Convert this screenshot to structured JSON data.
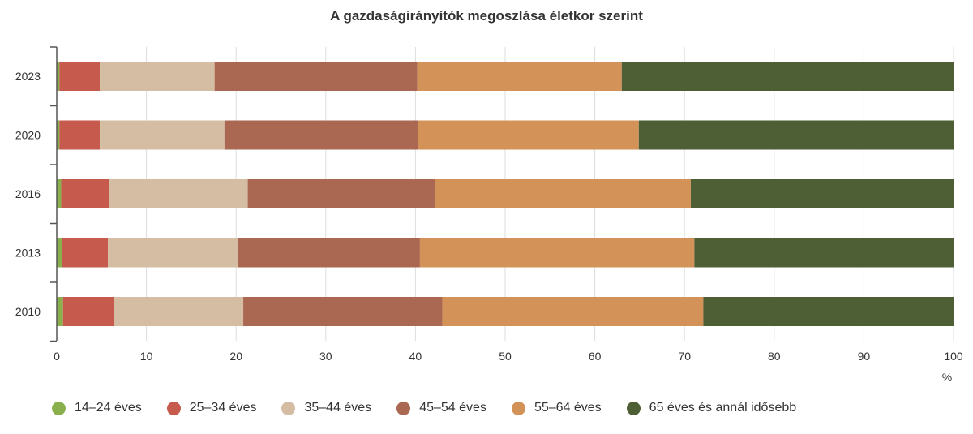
{
  "chart_data": {
    "type": "bar",
    "orientation": "horizontal",
    "stacked": true,
    "title": "A gazdaságirányítók megoszlása életkor szerint",
    "xlabel": "",
    "ylabel": "",
    "x_unit": "%",
    "xlim": [
      0,
      100
    ],
    "x_ticks": [
      0,
      10,
      20,
      30,
      40,
      50,
      60,
      70,
      80,
      90,
      100
    ],
    "grid": true,
    "legend_position": "bottom",
    "categories": [
      "2023",
      "2020",
      "2016",
      "2013",
      "2010"
    ],
    "series": [
      {
        "name": "14–24 éves",
        "color": "#8ab04e",
        "values": [
          0.3,
          0.3,
          0.5,
          0.6,
          0.7
        ]
      },
      {
        "name": "25–34 éves",
        "color": "#c65a4d",
        "values": [
          4.5,
          4.5,
          5.3,
          5.1,
          5.7
        ]
      },
      {
        "name": "35–44 éves",
        "color": "#d4bda3",
        "values": [
          12.8,
          13.9,
          15.5,
          14.5,
          14.4
        ]
      },
      {
        "name": "45–54 éves",
        "color": "#aa6752",
        "values": [
          22.6,
          21.6,
          20.9,
          20.3,
          22.2
        ]
      },
      {
        "name": "55–64 éves",
        "color": "#d39257",
        "values": [
          22.8,
          24.6,
          28.5,
          30.6,
          29.1
        ]
      },
      {
        "name": "65 éves és annál idősebb",
        "color": "#4e5e35",
        "values": [
          37.0,
          35.1,
          29.3,
          28.9,
          27.9
        ]
      }
    ]
  }
}
